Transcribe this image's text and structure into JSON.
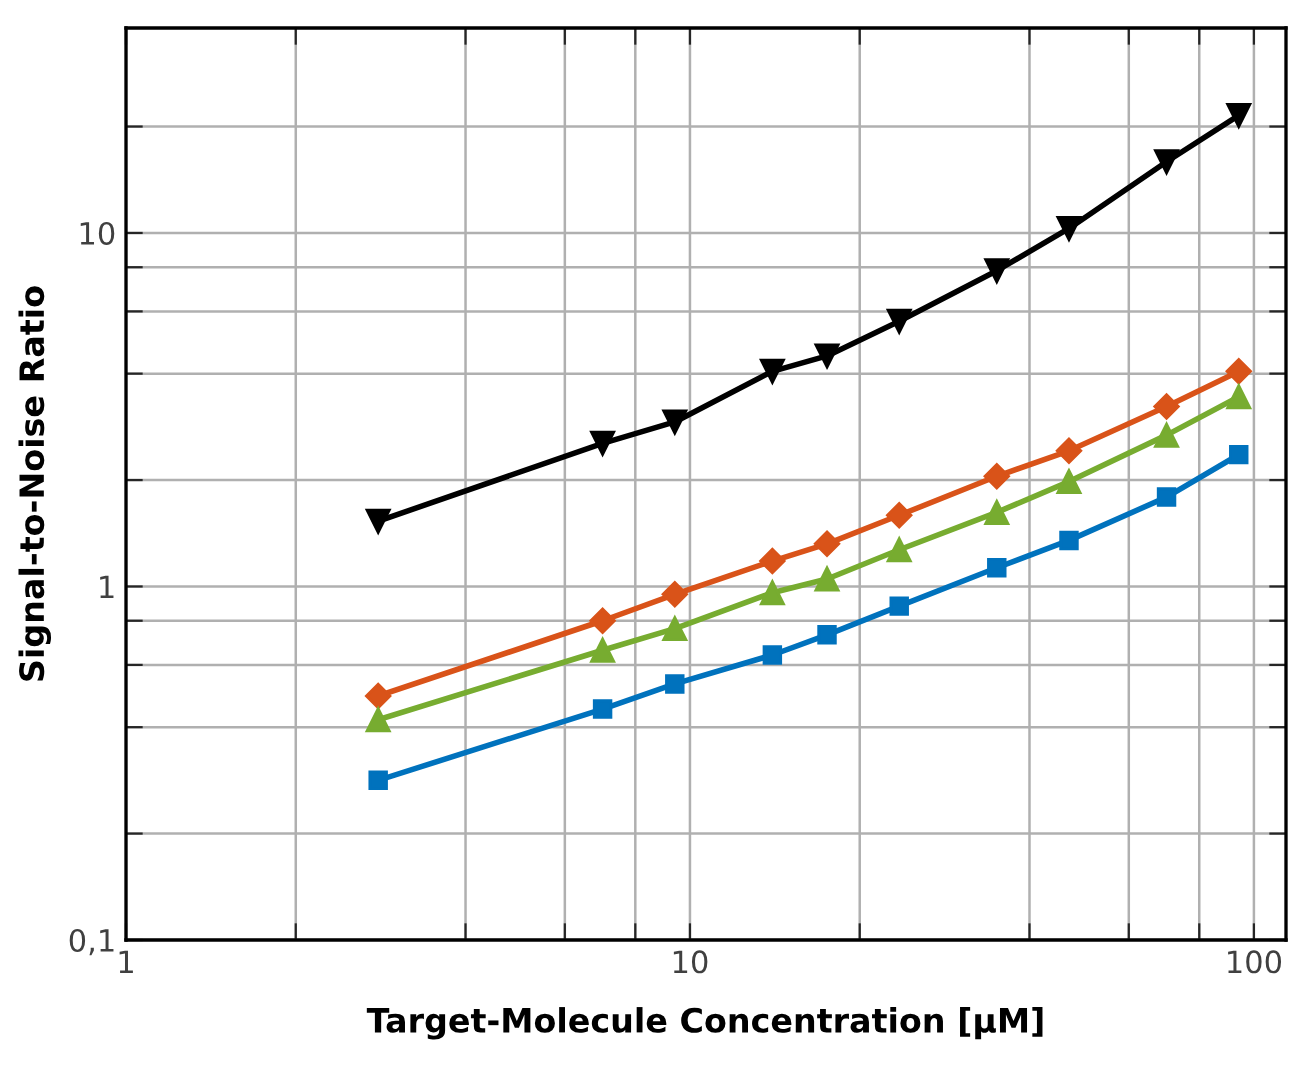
{
  "chart_data": {
    "type": "line",
    "xlabel": "Target-Molecule Concentration [µM]",
    "ylabel": "Signal-to-Noise Ratio",
    "log": "xy",
    "grid": true,
    "line_style": "solid",
    "x": [
      2.8,
      7,
      9.4,
      14,
      17.5,
      23.5,
      35,
      47,
      70,
      94
    ],
    "xlim": [
      1,
      114
    ],
    "ylim": [
      0.1,
      38
    ],
    "xticks": [
      1,
      {
        "value": 2,
        "label": null
      },
      {
        "value": 4,
        "label": null
      },
      {
        "value": 6,
        "label": null
      },
      {
        "value": 8,
        "label": null
      },
      10,
      {
        "value": 20,
        "label": null
      },
      {
        "value": 40,
        "label": null
      },
      {
        "value": 60,
        "label": null
      },
      {
        "value": 80,
        "label": null
      },
      100
    ],
    "yticks": [
      {
        "value": 0.1,
        "label": "0,1"
      },
      {
        "value": 0.2,
        "label": null
      },
      {
        "value": 0.4,
        "label": null
      },
      {
        "value": 0.6,
        "label": null
      },
      {
        "value": 0.8,
        "label": null
      },
      1,
      {
        "value": 2,
        "label": null
      },
      {
        "value": 4,
        "label": null
      },
      {
        "value": 6,
        "label": null
      },
      {
        "value": 8,
        "label": null
      },
      10,
      {
        "value": 20,
        "label": null
      }
    ],
    "series": [
      {
        "color": "#000000",
        "marker": "triangle_down",
        "values": [
          1.53,
          2.54,
          2.92,
          4.06,
          4.49,
          5.63,
          7.82,
          10.3,
          15.9,
          21.5
        ]
      },
      {
        "color": "#d95319",
        "marker": "diamond",
        "values": [
          0.49,
          0.8,
          0.95,
          1.18,
          1.32,
          1.59,
          2.05,
          2.42,
          3.23,
          4.06
        ]
      },
      {
        "color": "#77ac30",
        "marker": "triangle",
        "values": [
          0.42,
          0.66,
          0.76,
          0.96,
          1.05,
          1.27,
          1.62,
          1.98,
          2.68,
          3.44
        ]
      },
      {
        "color": "#0072bd",
        "marker": "square",
        "values": [
          0.283,
          0.45,
          0.53,
          0.64,
          0.73,
          0.88,
          1.13,
          1.35,
          1.79,
          2.36
        ]
      }
    ]
  }
}
